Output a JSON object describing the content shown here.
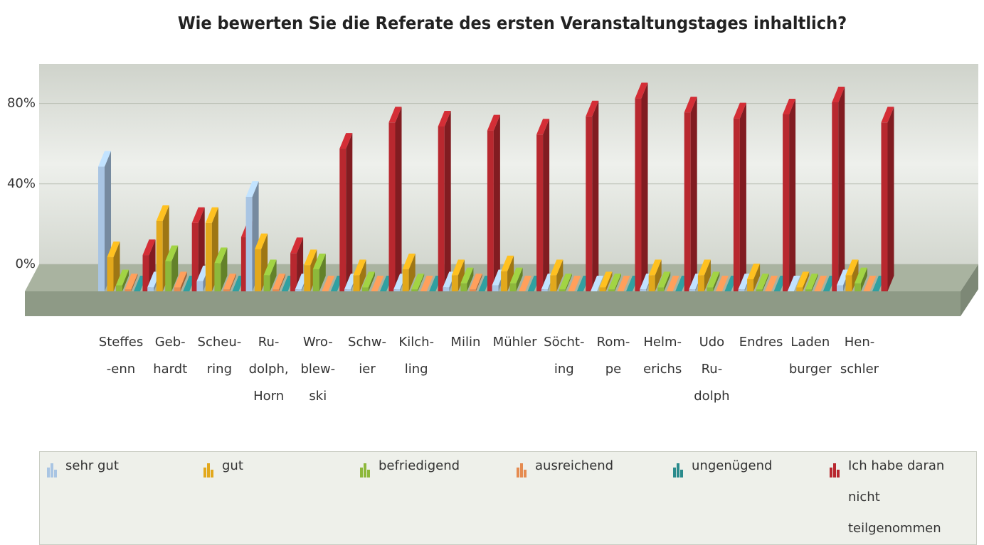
{
  "chart_data": {
    "type": "bar3d",
    "title": "Wie bewerten Sie die Referate des ersten Veranstaltungstages inhaltlich?",
    "categories": [
      [
        "Steffes",
        "-enn"
      ],
      [
        "Geb-",
        "hardt"
      ],
      [
        "Scheu-",
        "ring"
      ],
      [
        "Ru-",
        "dolph,",
        "Horn"
      ],
      [
        "Wro-",
        "blew-",
        "ski"
      ],
      [
        "Schw-",
        "ier"
      ],
      [
        "Kilch-",
        "ling"
      ],
      [
        "Milin"
      ],
      [
        "Mühler"
      ],
      [
        "Söcht-",
        "ing"
      ],
      [
        "Rom-",
        "pe"
      ],
      [
        "Helm-",
        "erichs"
      ],
      [
        "Udo",
        "Ru-",
        "dolph"
      ],
      [
        "Endres"
      ],
      [
        "Laden",
        "burger"
      ],
      [
        "Hen-",
        "schler"
      ]
    ],
    "series": [
      {
        "name": "sehr gut",
        "color": "#a9c5e3",
        "values": [
          62,
          2,
          5,
          47,
          1,
          1,
          1,
          2,
          3,
          1,
          0,
          1,
          1,
          1,
          0,
          3
        ]
      },
      {
        "name": "gut",
        "color": "#e2a81c",
        "values": [
          17,
          35,
          34,
          21,
          13,
          8,
          11,
          8,
          10,
          8,
          2,
          8,
          8,
          6,
          2,
          8
        ]
      },
      {
        "name": "befriedigend",
        "color": "#8db83b",
        "values": [
          3,
          15,
          14,
          8,
          11,
          2,
          1,
          4,
          4,
          1,
          1,
          2,
          2,
          1,
          1,
          4
        ]
      },
      {
        "name": "ausreichend",
        "color": "#e58b50",
        "values": [
          1,
          2,
          1,
          1,
          0,
          0,
          0,
          1,
          0,
          0,
          0,
          0,
          0,
          0,
          0,
          0
        ]
      },
      {
        "name": "ungenügend",
        "color": "#2a8b8c",
        "values": [
          0,
          0,
          0,
          0,
          0,
          0,
          0,
          0,
          0,
          0,
          0,
          0,
          0,
          0,
          0,
          0
        ]
      },
      {
        "name": "Ich habe daran nicht teilgenommen",
        "color": "#b8282f",
        "values": [
          18,
          34,
          27,
          19,
          71,
          84,
          82,
          80,
          78,
          87,
          96,
          89,
          86,
          88,
          94,
          84
        ]
      }
    ],
    "ylim": [
      0,
      100
    ],
    "yticks": [
      {
        "value": 0,
        "label": "0%"
      },
      {
        "value": 40,
        "label": "40%"
      },
      {
        "value": 80,
        "label": "80%"
      }
    ],
    "grid": true
  }
}
